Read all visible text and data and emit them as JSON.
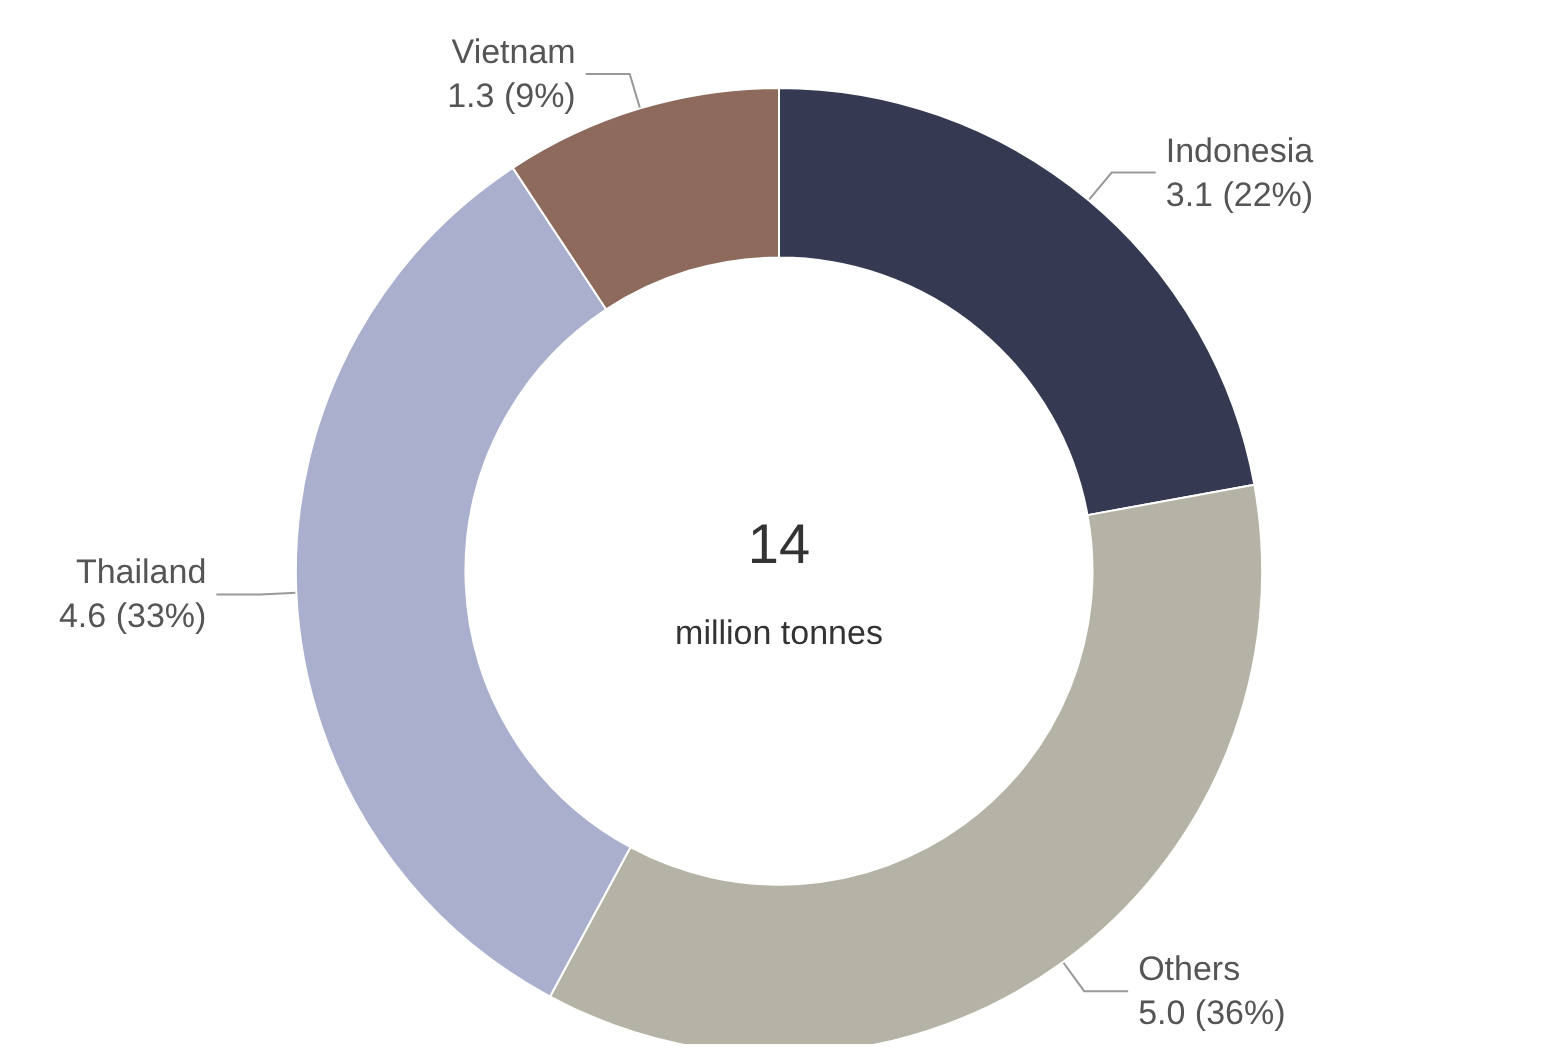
{
  "chart_data": {
    "type": "donut",
    "categories": [
      "Indonesia",
      "Others",
      "Thailand",
      "Vietnam"
    ],
    "values": [
      3.1,
      5.0,
      4.6,
      1.3
    ],
    "colors": [
      "#353a52",
      "#b5b3a5",
      "#a9afcc",
      "#8d6a5c"
    ],
    "value_labels": [
      "3.1 (22%)",
      "5.0 (36%)",
      "4.6 (33%)",
      "1.3 (9%)"
    ],
    "annotations": [
      "14",
      "million tonnes"
    ],
    "legend": false
  }
}
